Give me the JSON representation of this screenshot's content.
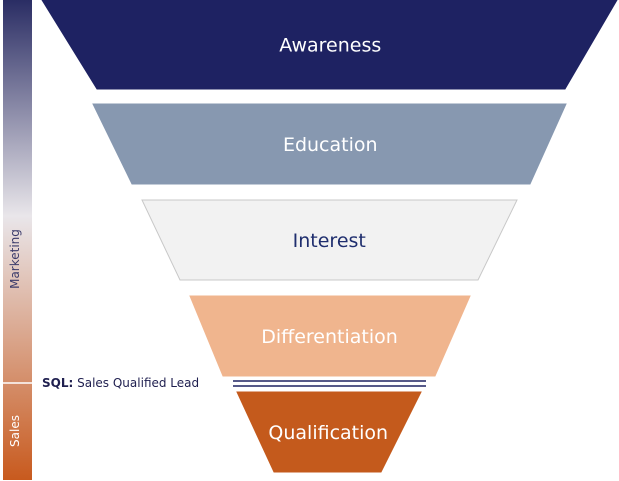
{
  "sidebar": {
    "marketing_label": "Marketing",
    "sales_label": "Sales",
    "colors": {
      "top": "#2a2d64",
      "middle": "#e9e6ea",
      "bottom": "#c85a1e"
    }
  },
  "stages": [
    {
      "label": "Awareness",
      "fill": "#1e2262",
      "text_color": "#ffffff"
    },
    {
      "label": "Education",
      "fill": "#8798b0",
      "text_color": "#ffffff"
    },
    {
      "label": "Interest",
      "fill": "#f2f2f2",
      "text_color": "#1f2e6e"
    },
    {
      "label": "Differentiation",
      "fill": "#f0b58e",
      "text_color": "#ffffff"
    },
    {
      "label": "Qualification",
      "fill": "#c45a1c",
      "text_color": "#ffffff"
    }
  ],
  "sql_marker": {
    "abbr": "SQL:",
    "text": " Sales Qualified Lead",
    "line_color": "#1e2262"
  }
}
